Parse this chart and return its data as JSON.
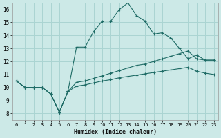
{
  "xlabel": "Humidex (Indice chaleur)",
  "bg_color": "#cce9e7",
  "grid_color": "#aad4d2",
  "line_color": "#1e6b65",
  "xlim": [
    -0.5,
    23.5
  ],
  "ylim": [
    7.5,
    16.5
  ],
  "xticks": [
    0,
    1,
    2,
    3,
    4,
    5,
    6,
    7,
    8,
    9,
    10,
    11,
    12,
    13,
    14,
    15,
    16,
    17,
    18,
    19,
    20,
    21,
    22,
    23
  ],
  "yticks": [
    8,
    9,
    10,
    11,
    12,
    13,
    14,
    15,
    16
  ],
  "line1_x": [
    0,
    1,
    2,
    3,
    4,
    5,
    6,
    7,
    8,
    9,
    10,
    11,
    12,
    13,
    14,
    15,
    16,
    17,
    18,
    19,
    20,
    21,
    22,
    23
  ],
  "line1_y": [
    10.5,
    10.0,
    10.0,
    10.0,
    9.5,
    8.1,
    9.7,
    13.1,
    13.1,
    14.3,
    15.1,
    15.1,
    16.0,
    16.5,
    15.5,
    15.1,
    14.1,
    14.2,
    13.8,
    13.0,
    12.2,
    12.5,
    12.1,
    12.1
  ],
  "line2_x": [
    0,
    1,
    2,
    3,
    4,
    5,
    6,
    7,
    8,
    9,
    10,
    11,
    12,
    13,
    14,
    15,
    16,
    17,
    18,
    19,
    20,
    21,
    22,
    23
  ],
  "line2_y": [
    10.5,
    10.0,
    10.0,
    10.0,
    9.5,
    8.1,
    9.7,
    10.4,
    10.5,
    10.7,
    10.9,
    11.1,
    11.3,
    11.5,
    11.7,
    11.8,
    12.0,
    12.2,
    12.4,
    12.6,
    12.8,
    12.2,
    12.1,
    12.1
  ],
  "line3_x": [
    0,
    1,
    2,
    3,
    4,
    5,
    6,
    7,
    8,
    9,
    10,
    11,
    12,
    13,
    14,
    15,
    16,
    17,
    18,
    19,
    20,
    21,
    22,
    23
  ],
  "line3_y": [
    10.5,
    10.0,
    10.0,
    10.0,
    9.5,
    8.1,
    9.7,
    10.1,
    10.2,
    10.35,
    10.5,
    10.6,
    10.75,
    10.85,
    10.95,
    11.05,
    11.15,
    11.25,
    11.35,
    11.45,
    11.55,
    11.25,
    11.1,
    11.0
  ]
}
